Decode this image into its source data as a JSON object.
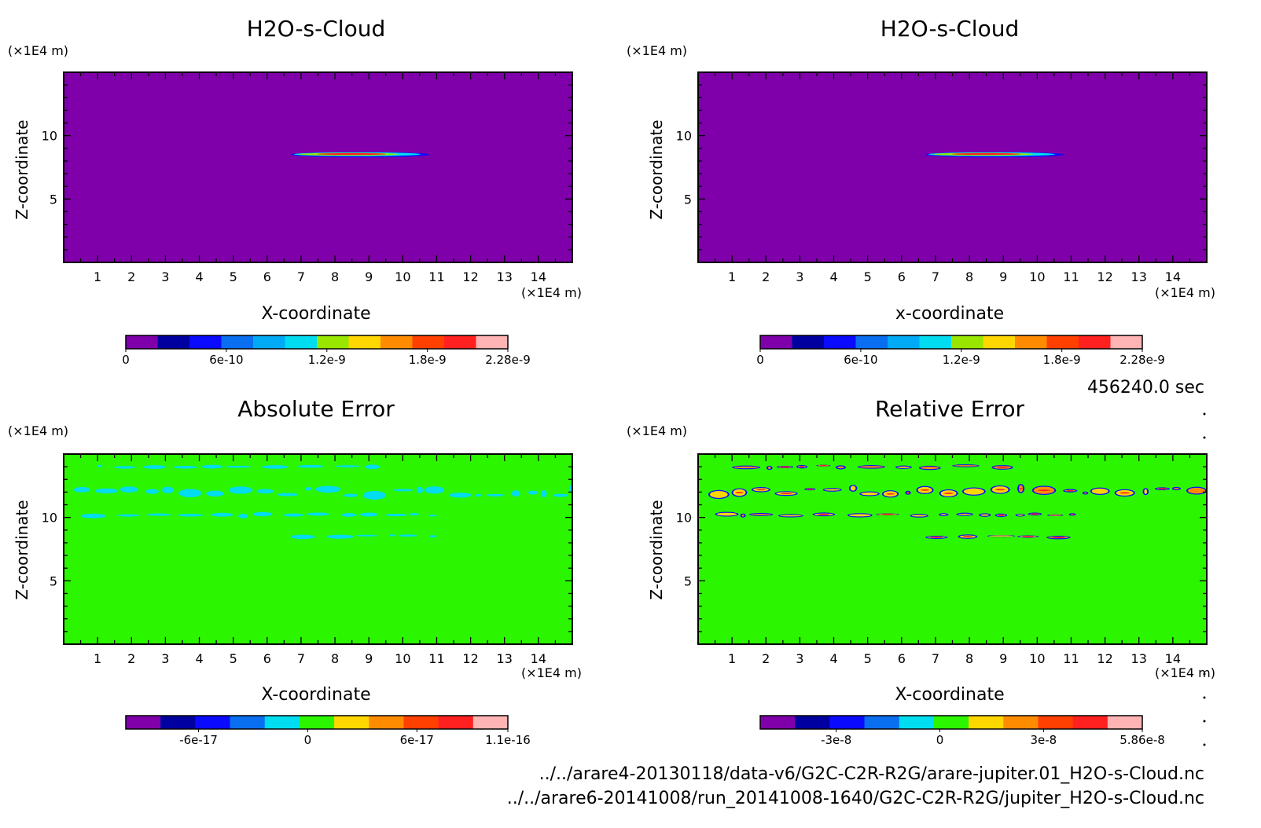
{
  "colors": {
    "purple": "#7f00aa",
    "green": "#2cf500",
    "navy": "#0000a0",
    "blue": "#0a0aff",
    "mid_blue": "#0a6ef0",
    "sky": "#00aaf5",
    "cyan": "#00dcf0",
    "lime": "#99e600",
    "yellow": "#ffd700",
    "orange": "#ff8c00",
    "red_orange": "#ff4000",
    "red": "#ff2020",
    "pink": "#ffb4b4"
  },
  "time_label": "456240.0 sec",
  "footer": {
    "file_1": "../../arare4-20130118/data-v6/G2C-C2R-R2G/arare-jupiter.01_H2O-s-Cloud.nc",
    "file_2": "../../arare6-20141008/run_20141008-1640/G2C-C2R-R2G/jupiter_H2O-s-Cloud.nc"
  },
  "chart_data": [
    {
      "type": "heatmap",
      "title": "H2O-s-Cloud",
      "xlabel": "X-coordinate",
      "ylabel": "Z-coordinate",
      "x_unit": "(×1E4 m)",
      "z_unit": "(×1E4 m)",
      "xlim": [
        0,
        15
      ],
      "zlim": [
        0,
        15
      ],
      "x_ticks": [
        "1",
        "2",
        "3",
        "4",
        "5",
        "6",
        "7",
        "8",
        "9",
        "10",
        "11",
        "12",
        "13",
        "14"
      ],
      "z_ticks": [
        "5",
        "10"
      ],
      "background": "purple",
      "features": [
        {
          "kind": "cloud_layer",
          "z": 8.5,
          "x": [
            6.7,
            10.8
          ],
          "peak_x": 8.5
        }
      ],
      "colorbar": {
        "min": 0,
        "max": 2.28e-09,
        "labels": [
          "0",
          "6e-10",
          "1.2e-9",
          "1.8e-9",
          "2.28e-9"
        ],
        "label_values": [
          0,
          6e-10,
          1.2e-09,
          1.8e-09,
          2.28e-09
        ],
        "colors": [
          "purple",
          "navy",
          "blue",
          "mid_blue",
          "sky",
          "cyan",
          "lime",
          "yellow",
          "orange",
          "red_orange",
          "red",
          "pink"
        ]
      }
    },
    {
      "type": "heatmap",
      "title": "H2O-s-Cloud",
      "xlabel": "x-coordinate",
      "ylabel": "Z-coordinate",
      "x_unit": "(×1E4 m)",
      "z_unit": "(×1E4 m)",
      "xlim": [
        0,
        15
      ],
      "zlim": [
        0,
        15
      ],
      "x_ticks": [
        "1",
        "2",
        "3",
        "4",
        "5",
        "6",
        "7",
        "8",
        "9",
        "10",
        "11",
        "12",
        "13",
        "14"
      ],
      "z_ticks": [
        "5",
        "10"
      ],
      "background": "purple",
      "features": [
        {
          "kind": "cloud_layer",
          "z": 8.5,
          "x": [
            6.7,
            10.8
          ],
          "peak_x": 8.5
        }
      ],
      "colorbar": {
        "min": 0,
        "max": 2.28e-09,
        "labels": [
          "0",
          "6e-10",
          "1.2e-9",
          "1.8e-9",
          "2.28e-9"
        ],
        "label_values": [
          0,
          6e-10,
          1.2e-09,
          1.8e-09,
          2.28e-09
        ],
        "colors": [
          "purple",
          "navy",
          "blue",
          "mid_blue",
          "sky",
          "cyan",
          "lime",
          "yellow",
          "orange",
          "red_orange",
          "red",
          "pink"
        ]
      }
    },
    {
      "type": "heatmap",
      "title": "Absolute Error",
      "xlabel": "X-coordinate",
      "ylabel": "Z-coordinate",
      "x_unit": "(×1E4 m)",
      "z_unit": "(×1E4 m)",
      "xlim": [
        0,
        15
      ],
      "zlim": [
        0,
        15
      ],
      "x_ticks": [
        "1",
        "2",
        "3",
        "4",
        "5",
        "6",
        "7",
        "8",
        "9",
        "10",
        "11",
        "12",
        "13",
        "14"
      ],
      "z_ticks": [
        "5",
        "10"
      ],
      "background": "green",
      "features": [
        {
          "kind": "noise_band",
          "z": 14.0,
          "x": [
            1.0,
            9.5
          ]
        },
        {
          "kind": "noise_band",
          "z": 12.0,
          "x": [
            0.3,
            15.0
          ]
        },
        {
          "kind": "noise_band",
          "z": 10.2,
          "x": [
            0.5,
            11.0
          ]
        },
        {
          "kind": "noise_band",
          "z": 8.5,
          "x": [
            6.7,
            11.0
          ]
        }
      ],
      "colorbar": {
        "min": -1e-16,
        "max": 1.1e-16,
        "labels": [
          "-6e-17",
          "0",
          "6e-17",
          "1.1e-16"
        ],
        "label_values": [
          -6e-17,
          0,
          6e-17,
          1.1e-16
        ],
        "colors": [
          "purple",
          "navy",
          "blue",
          "mid_blue",
          "cyan",
          "green",
          "yellow",
          "orange",
          "red_orange",
          "red",
          "pink"
        ]
      }
    },
    {
      "type": "heatmap",
      "title": "Relative Error",
      "xlabel": "X-coordinate",
      "ylabel": "Z-coordinate",
      "x_unit": "(×1E4 m)",
      "z_unit": "(×1E4 m)",
      "xlim": [
        0,
        15
      ],
      "zlim": [
        0,
        15
      ],
      "x_ticks": [
        "1",
        "2",
        "3",
        "4",
        "5",
        "6",
        "7",
        "8",
        "9",
        "10",
        "11",
        "12",
        "13",
        "14"
      ],
      "z_ticks": [
        "5",
        "10"
      ],
      "background": "green",
      "features": [
        {
          "kind": "noise_band",
          "z": 14.0,
          "x": [
            1.0,
            9.5
          ]
        },
        {
          "kind": "noise_band",
          "z": 12.0,
          "x": [
            0.3,
            15.0
          ]
        },
        {
          "kind": "noise_band",
          "z": 10.2,
          "x": [
            0.5,
            11.5
          ]
        },
        {
          "kind": "noise_band",
          "z": 8.5,
          "x": [
            6.7,
            11.0
          ]
        }
      ],
      "colorbar": {
        "min": -5.2e-08,
        "max": 5.86e-08,
        "labels": [
          "-3e-8",
          "0",
          "3e-8",
          "5.86e-8"
        ],
        "label_values": [
          -3e-08,
          0,
          3e-08,
          5.86e-08
        ],
        "colors": [
          "purple",
          "navy",
          "blue",
          "mid_blue",
          "cyan",
          "green",
          "yellow",
          "orange",
          "red_orange",
          "red",
          "pink"
        ]
      }
    }
  ]
}
